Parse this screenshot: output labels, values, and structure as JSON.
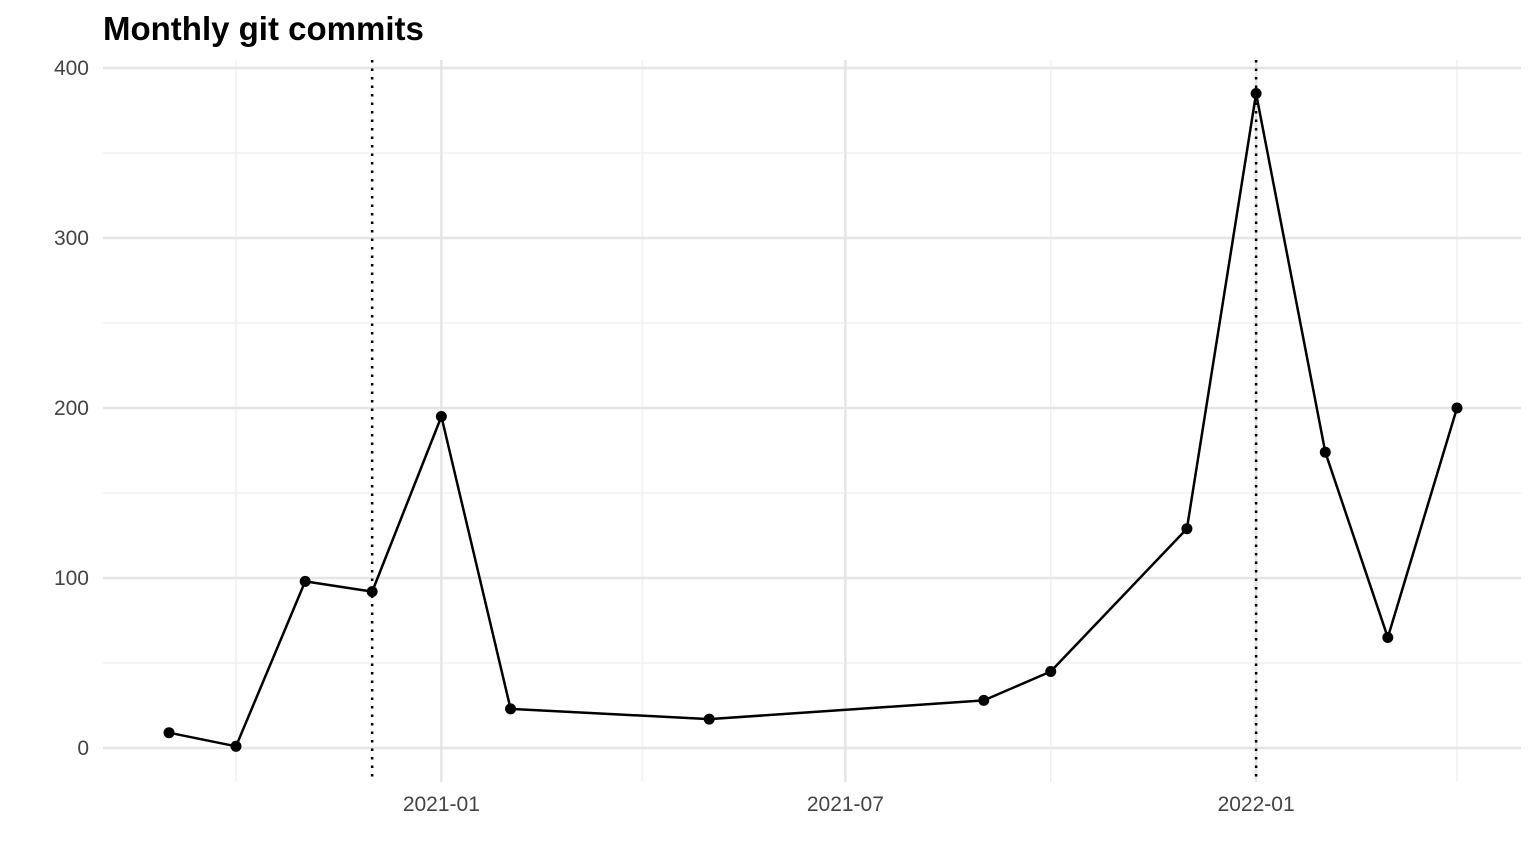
{
  "chart_data": {
    "type": "line",
    "title": "Monthly git commits",
    "xlabel": "",
    "ylabel": "",
    "x_axis": {
      "type": "date",
      "range": [
        "2020-09-01",
        "2022-04-30"
      ],
      "major_ticks": [
        "2021-01-01",
        "2021-07-01",
        "2022-01-01"
      ],
      "minor_ticks": [
        "2020-10-01",
        "2021-04-01",
        "2021-10-01",
        "2022-04-01"
      ],
      "tick_labels": [
        "2021-01",
        "2021-07",
        "2022-01"
      ]
    },
    "y_axis": {
      "range": [
        -20,
        405
      ],
      "major_ticks": [
        0,
        100,
        200,
        300,
        400
      ],
      "minor_ticks": [
        50,
        150,
        250,
        350
      ],
      "tick_labels": [
        "0",
        "100",
        "200",
        "300",
        "400"
      ]
    },
    "grid": true,
    "series": [
      {
        "color": "#000000",
        "marker": "circle",
        "points": [
          {
            "x": "2020-09-01",
            "y": 9
          },
          {
            "x": "2020-10-01",
            "y": 1
          },
          {
            "x": "2020-11-01",
            "y": 98
          },
          {
            "x": "2020-12-01",
            "y": 92
          },
          {
            "x": "2021-01-01",
            "y": 195
          },
          {
            "x": "2021-02-01",
            "y": 23
          },
          {
            "x": "2021-05-01",
            "y": 17
          },
          {
            "x": "2021-09-01",
            "y": 28
          },
          {
            "x": "2021-10-01",
            "y": 45
          },
          {
            "x": "2021-12-01",
            "y": 129
          },
          {
            "x": "2022-01-01",
            "y": 385
          },
          {
            "x": "2022-02-01",
            "y": 174
          },
          {
            "x": "2022-03-01",
            "y": 65
          },
          {
            "x": "2022-04-01",
            "y": 200
          }
        ]
      }
    ],
    "reference_lines": [
      {
        "x": "2020-12-01",
        "style": "dotted",
        "color": "#000000"
      },
      {
        "x": "2022-01-01",
        "style": "dotted",
        "color": "#000000"
      }
    ],
    "colors": {
      "background": "#ffffff",
      "grid_major": "#e5e5e5",
      "grid_minor": "#f0f0f0",
      "line": "#000000",
      "tick_text": "#444444"
    }
  }
}
